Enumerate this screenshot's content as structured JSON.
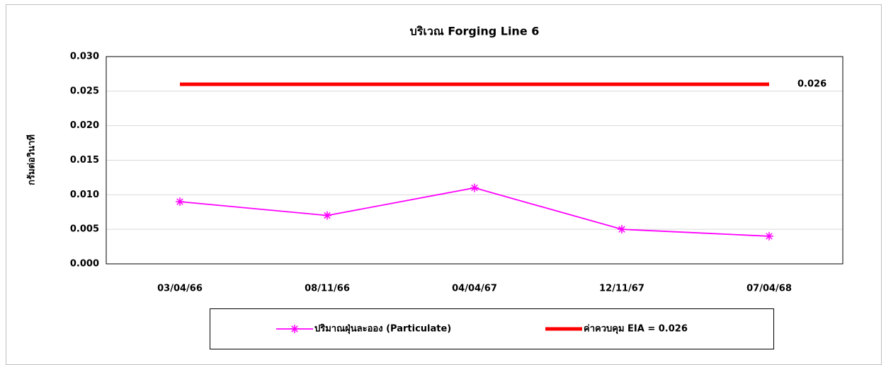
{
  "chart_data": {
    "type": "line",
    "title": "บริเวณ Forging Line 6",
    "y_label": "กรัมต่อวินาที",
    "categories": [
      "03/04/66",
      "08/11/66",
      "04/04/67",
      "12/11/67",
      "07/04/68"
    ],
    "series": [
      {
        "name": "ปริมาณฝุ่นละออง (Particulate)",
        "color": "#ff00ff",
        "values": [
          0.009,
          0.007,
          0.011,
          0.005,
          0.004
        ]
      },
      {
        "name": "ค่าควบคุม EIA = 0.026",
        "color": "#ff0000",
        "values": [
          0.026,
          0.026,
          0.026,
          0.026,
          0.026
        ]
      }
    ],
    "ylim": [
      0,
      0.03
    ],
    "yticks": [
      {
        "value": 0,
        "label": "0.000"
      },
      0.005,
      {
        "value": 0.01,
        "label": "0.010"
      },
      0.015,
      {
        "value": 0.02,
        "label": "0.020"
      },
      0.025,
      {
        "value": 0.03,
        "label": "0.030"
      }
    ],
    "grid": true,
    "legend": "bottom"
  }
}
